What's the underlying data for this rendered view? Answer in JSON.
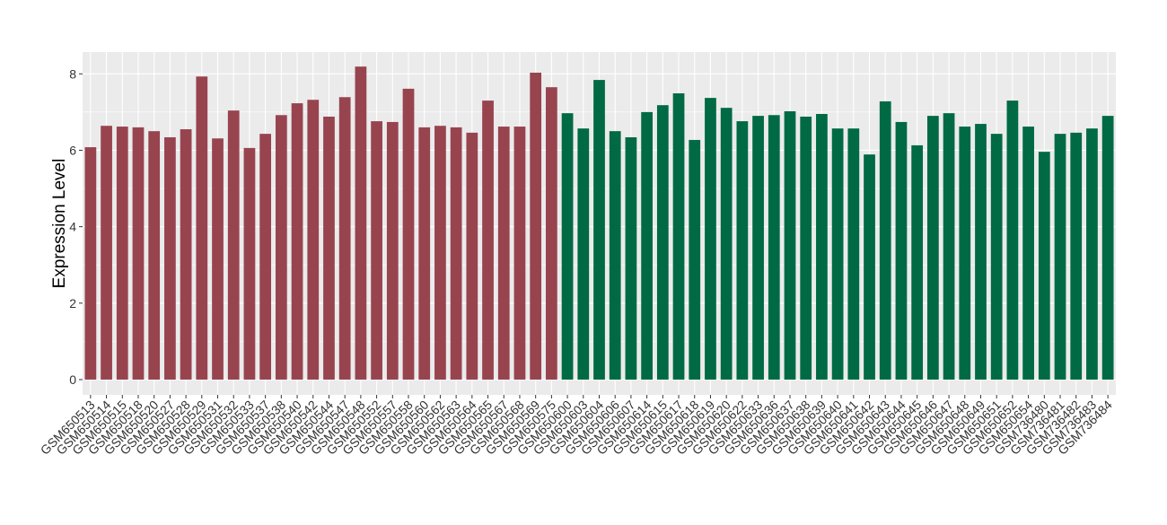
{
  "chart_data": {
    "type": "bar",
    "y_label": "Expression Level",
    "categories": [
      "GSM650513",
      "GSM650514",
      "GSM650515",
      "GSM650518",
      "GSM650520",
      "GSM650527",
      "GSM650528",
      "GSM650529",
      "GSM650531",
      "GSM650532",
      "GSM650533",
      "GSM650537",
      "GSM650538",
      "GSM650540",
      "GSM650542",
      "GSM650544",
      "GSM650547",
      "GSM650548",
      "GSM650552",
      "GSM650557",
      "GSM650558",
      "GSM650560",
      "GSM650562",
      "GSM650563",
      "GSM650564",
      "GSM650565",
      "GSM650567",
      "GSM650568",
      "GSM650569",
      "GSM650575",
      "GSM650600",
      "GSM650603",
      "GSM650604",
      "GSM650606",
      "GSM650607",
      "GSM650614",
      "GSM650615",
      "GSM650617",
      "GSM650618",
      "GSM650619",
      "GSM650620",
      "GSM650622",
      "GSM650633",
      "GSM650636",
      "GSM650637",
      "GSM650638",
      "GSM650639",
      "GSM650640",
      "GSM650641",
      "GSM650642",
      "GSM650643",
      "GSM650644",
      "GSM650645",
      "GSM650646",
      "GSM650647",
      "GSM650648",
      "GSM650649",
      "GSM650651",
      "GSM650652",
      "GSM650654",
      "GSM736480",
      "GSM736481",
      "GSM736482",
      "GSM736483",
      "GSM736484"
    ],
    "values": [
      6.08,
      6.64,
      6.62,
      6.6,
      6.5,
      6.34,
      6.55,
      7.93,
      6.31,
      7.04,
      6.06,
      6.43,
      6.92,
      7.23,
      7.32,
      6.88,
      7.39,
      8.19,
      6.76,
      6.74,
      7.61,
      6.6,
      6.64,
      6.6,
      6.46,
      7.3,
      6.62,
      6.62,
      8.03,
      7.65,
      6.97,
      6.57,
      7.84,
      6.5,
      6.34,
      7.0,
      7.18,
      7.49,
      6.27,
      7.37,
      7.11,
      6.76,
      6.9,
      6.92,
      7.02,
      6.88,
      6.95,
      6.57,
      6.57,
      5.89,
      7.28,
      6.74,
      6.13,
      6.9,
      6.97,
      6.62,
      6.69,
      6.43,
      7.3,
      6.62,
      5.96,
      6.43,
      6.46,
      6.57,
      6.9
    ],
    "colors": [
      "#98444f",
      "#98444f",
      "#98444f",
      "#98444f",
      "#98444f",
      "#98444f",
      "#98444f",
      "#98444f",
      "#98444f",
      "#98444f",
      "#98444f",
      "#98444f",
      "#98444f",
      "#98444f",
      "#98444f",
      "#98444f",
      "#98444f",
      "#98444f",
      "#98444f",
      "#98444f",
      "#98444f",
      "#98444f",
      "#98444f",
      "#98444f",
      "#98444f",
      "#98444f",
      "#98444f",
      "#98444f",
      "#98444f",
      "#98444f",
      "#006a45",
      "#006a45",
      "#006a45",
      "#006a45",
      "#006a45",
      "#006a45",
      "#006a45",
      "#006a45",
      "#006a45",
      "#006a45",
      "#006a45",
      "#006a45",
      "#006a45",
      "#006a45",
      "#006a45",
      "#006a45",
      "#006a45",
      "#006a45",
      "#006a45",
      "#006a45",
      "#006a45",
      "#006a45",
      "#006a45",
      "#006a45",
      "#006a45",
      "#006a45",
      "#006a45",
      "#006a45",
      "#006a45",
      "#006a45",
      "#006a45",
      "#006a45",
      "#006a45",
      "#006a45",
      "#006a45"
    ],
    "ylim": [
      -0.4,
      8.57
    ],
    "yticks": [
      0,
      2,
      4,
      6,
      8
    ],
    "grid": true
  }
}
